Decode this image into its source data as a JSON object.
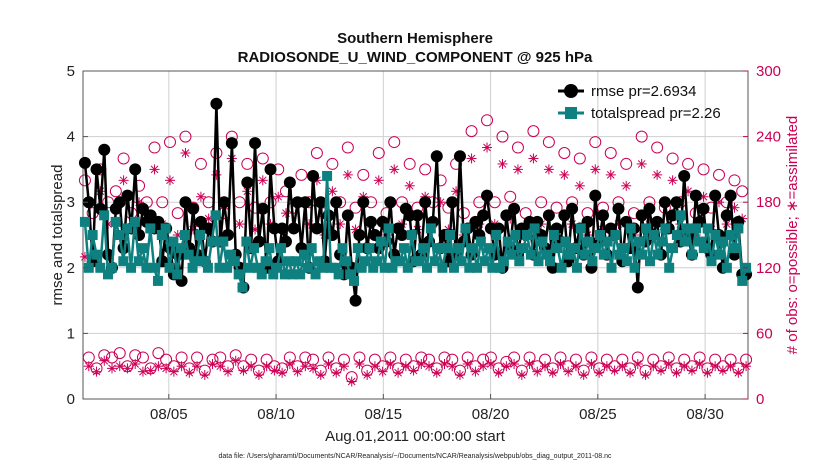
{
  "chart_data": {
    "type": "line",
    "title": "Southern Hemisphere",
    "subtitle": "RADIOSONDE_U_WIND_COMPONENT @ 925 hPa",
    "xlabel": "Aug.01,2011 00:00:00 start",
    "ylabel_left": "rmse and totalspread",
    "ylabel_right": "# of obs: o=possible; ∗=assimilated",
    "xlim": [
      1,
      32
    ],
    "ylim_left": [
      0,
      5
    ],
    "ylim_right": [
      0,
      300
    ],
    "x_ticks": [
      5,
      10,
      15,
      20,
      25,
      30
    ],
    "x_tick_labels": [
      "08/05",
      "08/10",
      "08/15",
      "08/20",
      "08/25",
      "08/30"
    ],
    "y_ticks_left": [
      0,
      1,
      2,
      3,
      4,
      5
    ],
    "y_tick_labels_left": [
      "0",
      "1",
      "2",
      "3",
      "4",
      "5"
    ],
    "y_ticks_right": [
      0,
      60,
      120,
      180,
      240,
      300
    ],
    "y_tick_labels_right": [
      "0",
      "60",
      "120",
      "180",
      "240",
      "300"
    ],
    "grid": true,
    "legend_position": "top-right",
    "colors": {
      "rmse": "#000000",
      "totalspread": "#0f8080",
      "obs": "#cc0055",
      "grid": "#cfcfcf"
    },
    "series": [
      {
        "name": "rmse pr=2.6934",
        "axis": "left",
        "marker": "circle",
        "values": [
          3.6,
          3.0,
          2.1,
          3.5,
          2.9,
          3.8,
          2.2,
          2.0,
          2.9,
          3.0,
          2.3,
          3.1,
          2.6,
          3.5,
          2.5,
          2.9,
          2.7,
          2.8,
          2.6,
          2.7,
          2.1,
          2.6,
          2.3,
          1.9,
          2.2,
          1.8,
          3.0,
          2.3,
          2.9,
          2.2,
          2.7,
          2.1,
          2.6,
          2.4,
          4.5,
          2.4,
          3.0,
          2.5,
          3.9,
          2.2,
          2.0,
          1.7,
          3.3,
          2.3,
          3.9,
          2.4,
          2.9,
          2.0,
          3.5,
          2.6,
          2.1,
          2.6,
          2.4,
          3.3,
          2.6,
          3.0,
          2.3,
          3.0,
          2.0,
          3.4,
          2.6,
          3.0,
          2.1,
          2.8,
          2.5,
          3.0,
          2.2,
          1.9,
          2.8,
          2.0,
          1.5,
          2.5,
          3.0,
          2.3,
          2.7,
          2.5,
          2.3,
          2.7,
          2.4,
          3.0,
          2.2,
          2.6,
          2.5,
          2.9,
          2.8,
          2.1,
          2.8,
          2.2,
          3.0,
          2.4,
          2.7,
          3.7,
          2.3,
          2.5,
          2.1,
          3.0,
          2.2,
          3.7,
          2.4,
          2.6,
          2.2,
          2.7,
          2.5,
          2.8,
          3.1,
          2.6,
          2.2,
          2.6,
          2.0,
          2.8,
          2.3,
          2.9,
          2.2,
          2.6,
          2.5,
          2.7,
          2.2,
          2.7,
          2.5,
          2.3,
          2.8,
          2.0,
          2.6,
          2.4,
          2.8,
          2.1,
          2.9,
          2.3,
          2.6,
          2.2,
          2.7,
          2.0,
          3.1,
          2.4,
          2.8,
          2.2,
          2.6,
          2.5,
          2.9,
          2.1,
          2.7,
          2.3,
          2.6,
          1.7,
          2.8,
          2.4,
          2.9,
          2.5,
          2.7,
          2.2,
          3.0,
          2.6,
          2.8,
          3.0,
          2.4,
          3.4,
          2.5,
          2.2,
          3.1,
          2.7,
          2.9,
          2.3,
          2.2,
          3.1,
          2.5,
          2.0,
          2.8,
          3.1,
          2.2,
          2.7,
          1.9,
          1.9
        ]
      },
      {
        "name": "totalspread pr=2.26",
        "axis": "left",
        "marker": "square",
        "values": [
          2.7,
          2.0,
          2.5,
          2.2,
          2.0,
          2.8,
          1.9,
          2.0,
          2.7,
          2.5,
          2.1,
          2.6,
          2.0,
          2.7,
          2.1,
          2.3,
          2.0,
          2.6,
          2.0,
          1.8,
          2.5,
          2.6,
          2.0,
          2.4,
          1.9,
          2.3,
          2.5,
          2.2,
          2.0,
          2.1,
          2.5,
          2.1,
          2.0,
          2.4,
          2.8,
          2.0,
          2.4,
          2.0,
          2.2,
          2.1,
          1.9,
          1.7,
          2.4,
          2.0,
          2.3,
          2.0,
          1.9,
          2.1,
          2.3,
          1.9,
          2.0,
          2.3,
          1.9,
          2.1,
          1.9,
          2.1,
          1.9,
          2.2,
          2.0,
          2.3,
          1.9,
          2.1,
          2.0,
          3.4,
          2.0,
          2.0,
          1.9,
          2.3,
          2.1,
          1.9,
          1.8,
          2.3,
          2.0,
          2.1,
          2.3,
          2.0,
          2.1,
          2.4,
          2.0,
          2.6,
          2.0,
          2.1,
          2.1,
          2.3,
          2.0,
          2.5,
          2.1,
          2.1,
          2.3,
          2.0,
          2.6,
          2.1,
          2.3,
          2.0,
          2.3,
          2.5,
          2.0,
          2.3,
          2.1,
          2.6,
          2.0,
          2.3,
          2.0,
          2.4,
          2.1,
          2.3,
          2.0,
          2.5,
          2.0,
          2.1,
          2.4,
          2.2,
          2.5,
          2.1,
          2.3,
          2.5,
          2.2,
          2.6,
          2.1,
          2.4,
          2.2,
          2.1,
          2.5,
          2.3,
          2.0,
          2.4,
          2.2,
          2.3,
          2.0,
          2.6,
          2.2,
          2.4,
          2.1,
          2.3,
          2.5,
          2.2,
          2.4,
          2.0,
          2.5,
          2.2,
          2.3,
          2.1,
          2.6,
          2.0,
          2.4,
          2.2,
          2.6,
          2.1,
          2.5,
          2.2,
          2.4,
          2.6,
          2.0,
          2.3,
          2.5,
          2.8,
          2.4,
          2.6,
          2.2,
          2.6,
          2.4,
          2.3,
          2.6,
          2.1,
          2.5,
          2.2,
          2.4,
          2.0,
          2.5,
          2.3,
          2.6,
          1.8,
          2.0
        ]
      },
      {
        "name": "possible obs",
        "axis": "right",
        "marker": "open-circle",
        "values": [
          200,
          38,
          170,
          28,
          210,
          40,
          180,
          38,
          190,
          42,
          220,
          30,
          170,
          40,
          195,
          38,
          180,
          28,
          230,
          42,
          180,
          36,
          235,
          30,
          170,
          38,
          240,
          28,
          175,
          38,
          215,
          26,
          180,
          36,
          225,
          38,
          170,
          30,
          240,
          40,
          180,
          30,
          215,
          36,
          175,
          26,
          220,
          36,
          180,
          30,
          210,
          28,
          190,
          38,
          175,
          30,
          205,
          38,
          180,
          36,
          225,
          26,
          170,
          38,
          215,
          28,
          180,
          36,
          230,
          20,
          175,
          38,
          205,
          26,
          180,
          36,
          225,
          30,
          170,
          38,
          235,
          28,
          180,
          36,
          215,
          30,
          175,
          38,
          210,
          36,
          180,
          28,
          200,
          38,
          175,
          36,
          215,
          26,
          170,
          38,
          245,
          30,
          180,
          36,
          255,
          38,
          180,
          28,
          240,
          34,
          185,
          38,
          230,
          26,
          170,
          38,
          245,
          30,
          180,
          36,
          235,
          28,
          175,
          38,
          225,
          30,
          180,
          36,
          220,
          26,
          170,
          38,
          235,
          28,
          175,
          36,
          225,
          30,
          180,
          36,
          215,
          28,
          170,
          38,
          240,
          26,
          180,
          36,
          230,
          30,
          175,
          38,
          220,
          28,
          180,
          36,
          215,
          30,
          170,
          38,
          210,
          28,
          175,
          36,
          205,
          30,
          180,
          36,
          200,
          28,
          190,
          36
        ]
      },
      {
        "name": "assimilated obs",
        "axis": "right",
        "marker": "asterisk",
        "values": [
          130,
          30,
          150,
          25,
          190,
          35,
          160,
          28,
          175,
          30,
          200,
          28,
          155,
          32,
          180,
          25,
          165,
          26,
          210,
          30,
          160,
          28,
          200,
          25,
          150,
          30,
          225,
          24,
          155,
          30,
          185,
          22,
          165,
          32,
          205,
          30,
          150,
          25,
          220,
          35,
          160,
          26,
          190,
          30,
          155,
          22,
          200,
          30,
          160,
          26,
          185,
          24,
          170,
          32,
          155,
          25,
          180,
          30,
          160,
          28,
          200,
          22,
          150,
          32,
          190,
          24,
          160,
          30,
          205,
          16,
          155,
          32,
          185,
          22,
          160,
          30,
          200,
          25,
          150,
          32,
          210,
          24,
          160,
          30,
          195,
          26,
          155,
          32,
          185,
          30,
          160,
          24,
          180,
          32,
          155,
          30,
          190,
          22,
          150,
          32,
          220,
          25,
          160,
          30,
          230,
          32,
          160,
          24,
          215,
          30,
          165,
          32,
          210,
          22,
          150,
          32,
          220,
          25,
          160,
          30,
          210,
          24,
          155,
          32,
          205,
          25,
          160,
          30,
          195,
          22,
          150,
          32,
          210,
          24,
          155,
          30,
          205,
          26,
          160,
          30,
          195,
          24,
          150,
          32,
          215,
          22,
          160,
          30,
          205,
          26,
          155,
          32,
          200,
          24,
          160,
          30,
          190,
          26,
          150,
          32,
          185,
          24,
          155,
          30,
          180,
          26,
          160,
          30,
          175,
          24,
          165,
          30
        ]
      }
    ],
    "footnote": "data file: /Users/gharamti/Documents/NCAR/Reanalysis/~/Documents/NCAR/Reanalysis/webpub/obs_diag_output_2011-08.nc"
  }
}
